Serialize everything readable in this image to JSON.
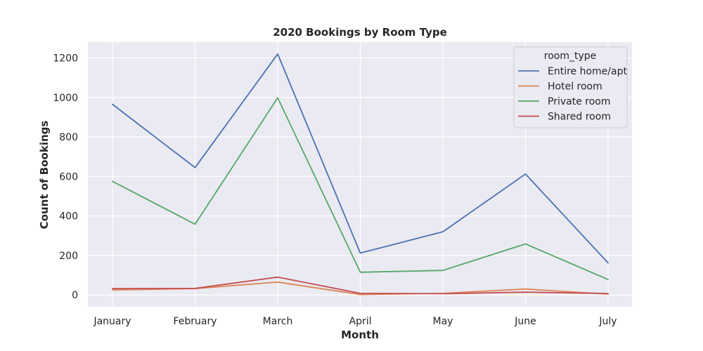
{
  "chart_data": {
    "type": "line",
    "title": "2020 Bookings by Room Type",
    "xlabel": "Month",
    "ylabel": "Count of Bookings",
    "categories": [
      "January",
      "February",
      "March",
      "April",
      "May",
      "June",
      "July"
    ],
    "yticks": [
      0,
      200,
      400,
      600,
      800,
      1000,
      1200
    ],
    "ylim": [
      -60,
      1280
    ],
    "grid": true,
    "legend": {
      "title": "room_type",
      "placement": "top-right"
    },
    "series": [
      {
        "name": "Entire home/apt",
        "color": "#4c72b0",
        "values": [
          965,
          645,
          1220,
          212,
          320,
          612,
          162
        ]
      },
      {
        "name": "Hotel room",
        "color": "#dd8452",
        "values": [
          25,
          32,
          65,
          2,
          8,
          30,
          4
        ]
      },
      {
        "name": "Private room",
        "color": "#55a868",
        "values": [
          575,
          358,
          998,
          115,
          124,
          258,
          78
        ]
      },
      {
        "name": "Shared room",
        "color": "#c44e52",
        "values": [
          32,
          33,
          90,
          8,
          6,
          14,
          7
        ]
      }
    ]
  }
}
